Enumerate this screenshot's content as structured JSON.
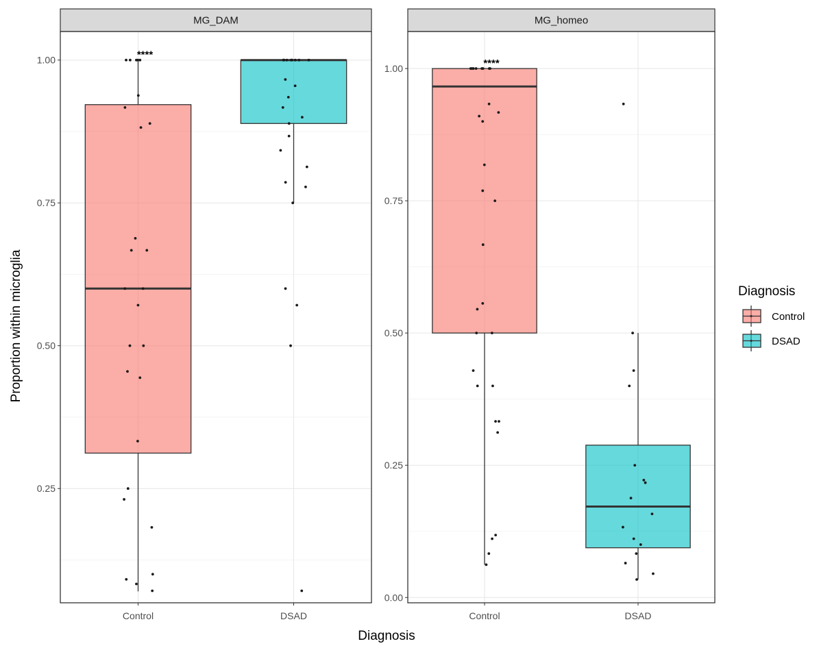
{
  "chart_data": {
    "type": "boxplot",
    "xlabel": "Diagnosis",
    "ylabel": "Proportion within microglia",
    "categories": [
      "Control",
      "DSAD"
    ],
    "colors": {
      "Control": "#F8766D",
      "DSAD": "#00BFC4"
    },
    "legend": {
      "title": "Diagnosis",
      "position": "right",
      "entries": [
        {
          "label": "Control",
          "color": "#F8766D"
        },
        {
          "label": "DSAD",
          "color": "#00BFC4"
        }
      ]
    },
    "panels": [
      {
        "strip": "MG_DAM",
        "ylim": [
          0.05,
          1.05
        ],
        "yticks": [
          0.25,
          0.5,
          0.75,
          1.0
        ],
        "ytick_labels": [
          "0.25",
          "0.50",
          "0.75",
          "1.00"
        ],
        "annotation": {
          "text": "****",
          "category": "Control",
          "y": 1.0
        },
        "boxes": [
          {
            "category": "Control",
            "whisker_low": 0.07,
            "q1": 0.312,
            "median": 0.6,
            "q3": 0.922,
            "whisker_high": 1.0
          },
          {
            "category": "DSAD",
            "whisker_low": 0.75,
            "q1": 0.889,
            "median": 1.0,
            "q3": 1.0,
            "whisker_high": 1.0
          }
        ],
        "points": [
          {
            "category": "Control",
            "values": [
              1.0,
              1.0,
              1.0,
              1.0,
              1.0,
              0.938,
              0.917,
              0.889,
              0.882,
              0.688,
              0.667,
              0.667,
              0.6,
              0.6,
              0.571,
              0.5,
              0.5,
              0.455,
              0.444,
              0.333,
              0.25,
              0.231,
              0.182,
              0.1,
              0.091,
              0.083,
              0.071
            ]
          },
          {
            "category": "DSAD",
            "values": [
              1.0,
              1.0,
              1.0,
              1.0,
              1.0,
              1.0,
              1.0,
              1.0,
              0.966,
              0.955,
              0.935,
              0.917,
              0.9,
              0.889,
              0.867,
              0.842,
              0.813,
              0.786,
              0.778,
              0.75,
              0.6,
              0.571,
              0.5,
              0.071
            ]
          }
        ]
      },
      {
        "strip": "MG_homeo",
        "ylim": [
          -0.01,
          1.07
        ],
        "yticks": [
          0.0,
          0.25,
          0.5,
          0.75,
          1.0
        ],
        "ytick_labels": [
          "0.00",
          "0.25",
          "0.50",
          "0.75",
          "1.00"
        ],
        "annotation": {
          "text": "****",
          "category": "Control",
          "y": 1.0
        },
        "boxes": [
          {
            "category": "Control",
            "whisker_low": 0.062,
            "q1": 0.5,
            "median": 0.966,
            "q3": 1.0,
            "whisker_high": 1.0
          },
          {
            "category": "DSAD",
            "whisker_low": 0.034,
            "q1": 0.094,
            "median": 0.172,
            "q3": 0.288,
            "whisker_high": 0.5
          }
        ],
        "points": [
          {
            "category": "Control",
            "values": [
              1.0,
              1.0,
              1.0,
              1.0,
              1.0,
              1.0,
              1.0,
              1.0,
              0.933,
              0.917,
              0.91,
              0.9,
              0.818,
              0.769,
              0.75,
              0.667,
              0.556,
              0.545,
              0.5,
              0.5,
              0.429,
              0.4,
              0.4,
              0.333,
              0.333,
              0.312,
              0.118,
              0.111,
              0.083,
              0.062
            ]
          },
          {
            "category": "DSAD",
            "values": [
              0.933,
              0.5,
              0.429,
              0.4,
              0.25,
              0.222,
              0.217,
              0.188,
              0.158,
              0.133,
              0.111,
              0.1,
              0.083,
              0.065,
              0.045,
              0.034
            ]
          }
        ]
      }
    ]
  }
}
